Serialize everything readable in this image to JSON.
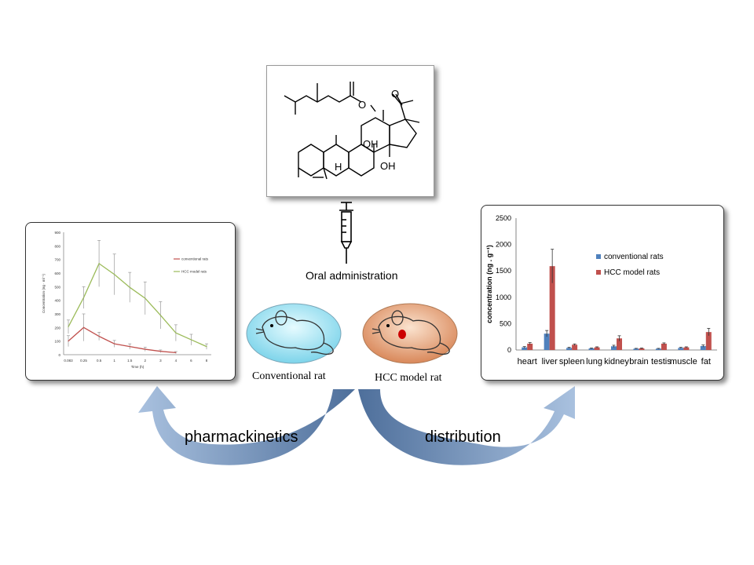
{
  "structure": {
    "atom_labels": [
      "O",
      "O",
      "OH",
      "OH",
      "H"
    ]
  },
  "labels": {
    "oral": "Oral administration",
    "conventional_rat": "Conventional rat",
    "hcc_rat": "HCC model rat",
    "pharmacokinetics": "pharmackinetics",
    "distribution": "distribution"
  },
  "colors": {
    "conventional": "#4f81bd",
    "hcc": "#c0504d",
    "pk_conventional": "#c0504d",
    "pk_hcc": "#9bbb59",
    "arrow": "#5d7fae"
  },
  "chart_data": [
    {
      "type": "line",
      "title": "",
      "xlabel": "Time (h)",
      "ylabel": "Concentration (ng · ml⁻¹)",
      "x": [
        "0.083",
        "0.25",
        "0.5",
        "1",
        "1.5",
        "2",
        "3",
        "4",
        "6",
        "8"
      ],
      "ylim": [
        0,
        900
      ],
      "yticks": [
        0,
        100,
        200,
        300,
        400,
        500,
        600,
        700,
        800,
        900
      ],
      "legend_position": "top-right",
      "series": [
        {
          "name": "conventional rats",
          "values": [
            100,
            200,
            135,
            80,
            60,
            40,
            25,
            15,
            null,
            null
          ],
          "errors": [
            40,
            100,
            30,
            25,
            20,
            15,
            10,
            8,
            null,
            null
          ]
        },
        {
          "name": "HCC model rats",
          "values": [
            205,
            420,
            670,
            590,
            495,
            415,
            290,
            160,
            110,
            60
          ],
          "errors": [
            50,
            80,
            170,
            150,
            110,
            120,
            100,
            60,
            40,
            20
          ]
        }
      ]
    },
    {
      "type": "bar",
      "title": "",
      "xlabel": "",
      "ylabel": "concentration (ng . g⁻¹)",
      "categories": [
        "heart",
        "liver",
        "spleen",
        "lung",
        "kidney",
        "brain",
        "testis",
        "muscle",
        "fat"
      ],
      "ylim": [
        0,
        2500
      ],
      "yticks": [
        0,
        500,
        1000,
        1500,
        2000,
        2500
      ],
      "legend_position": "center-right",
      "series": [
        {
          "name": "conventional rats",
          "values": [
            50,
            310,
            40,
            30,
            70,
            25,
            25,
            40,
            75
          ],
          "errors": [
            15,
            60,
            10,
            8,
            20,
            6,
            6,
            10,
            20
          ]
        },
        {
          "name": "HCC model rats",
          "values": [
            120,
            1590,
            100,
            50,
            220,
            30,
            120,
            50,
            340
          ],
          "errors": [
            20,
            320,
            15,
            10,
            50,
            8,
            15,
            10,
            70
          ]
        }
      ]
    }
  ]
}
